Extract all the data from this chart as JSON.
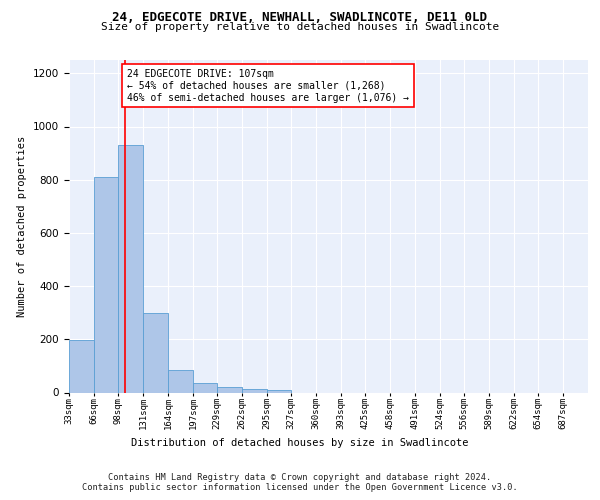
{
  "title1": "24, EDGECOTE DRIVE, NEWHALL, SWADLINCOTE, DE11 0LD",
  "title2": "Size of property relative to detached houses in Swadlincote",
  "xlabel": "Distribution of detached houses by size in Swadlincote",
  "ylabel": "Number of detached properties",
  "bin_labels": [
    "33sqm",
    "66sqm",
    "98sqm",
    "131sqm",
    "164sqm",
    "197sqm",
    "229sqm",
    "262sqm",
    "295sqm",
    "327sqm",
    "360sqm",
    "393sqm",
    "425sqm",
    "458sqm",
    "491sqm",
    "524sqm",
    "556sqm",
    "589sqm",
    "622sqm",
    "654sqm",
    "687sqm"
  ],
  "bar_values": [
    197,
    810,
    930,
    300,
    83,
    35,
    20,
    15,
    10,
    0,
    0,
    0,
    0,
    0,
    0,
    0,
    0,
    0,
    0,
    0,
    0
  ],
  "bar_color": "#aec6e8",
  "bar_edge_color": "#5a9fd4",
  "property_sqm": 107,
  "annotation_text": "24 EDGECOTE DRIVE: 107sqm\n← 54% of detached houses are smaller (1,268)\n46% of semi-detached houses are larger (1,076) →",
  "vline_color": "red",
  "ylim": [
    0,
    1250
  ],
  "yticks": [
    0,
    200,
    400,
    600,
    800,
    1000,
    1200
  ],
  "background_color": "#eaf0fb",
  "footer": "Contains HM Land Registry data © Crown copyright and database right 2024.\nContains public sector information licensed under the Open Government Licence v3.0.",
  "bin_edges_raw": [
    33,
    66,
    98,
    131,
    164,
    197,
    229,
    262,
    295,
    327,
    360,
    393,
    425,
    458,
    491,
    524,
    556,
    589,
    622,
    654,
    687,
    720
  ]
}
